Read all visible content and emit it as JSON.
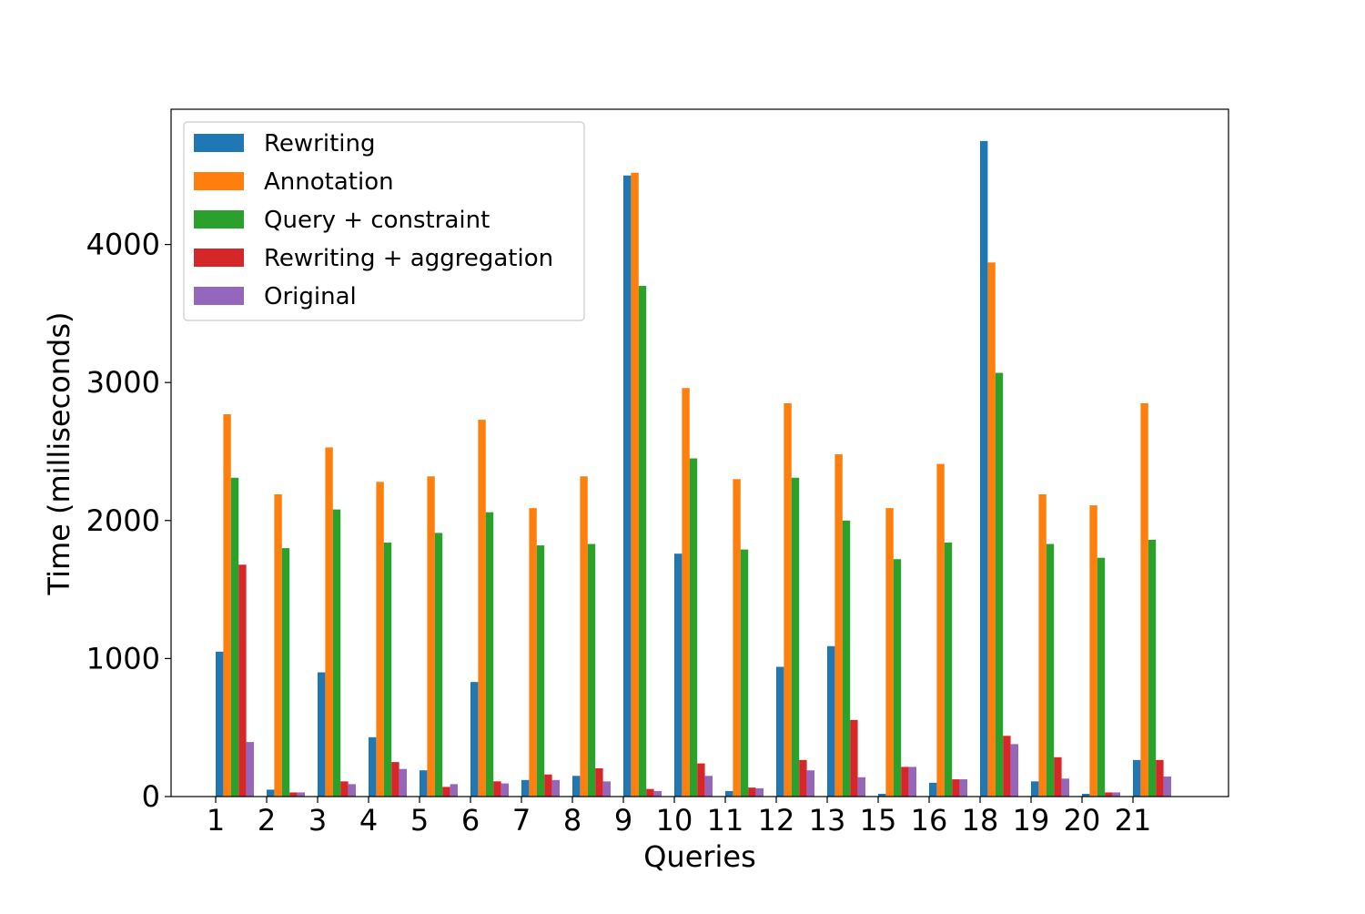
{
  "chart_data": {
    "type": "bar",
    "title": "",
    "xlabel": "Queries",
    "ylabel": "Time (milliseconds)",
    "ylim": [
      0,
      4980
    ],
    "yticks": [
      0,
      1000,
      2000,
      3000,
      4000
    ],
    "grid": false,
    "legend_position": "top-left",
    "categories": [
      "1",
      "2",
      "3",
      "4",
      "5",
      "6",
      "7",
      "8",
      "9",
      "10",
      "11",
      "12",
      "13",
      "15",
      "16",
      "18",
      "19",
      "20",
      "21"
    ],
    "series": [
      {
        "name": "Rewriting",
        "color": "#1f77b4",
        "values": [
          1050,
          50,
          900,
          430,
          190,
          830,
          120,
          150,
          4500,
          1760,
          40,
          940,
          1090,
          20,
          100,
          4750,
          110,
          20,
          265
        ]
      },
      {
        "name": "Annotation",
        "color": "#ff7f0e",
        "values": [
          2770,
          2190,
          2530,
          2280,
          2320,
          2730,
          2090,
          2320,
          4520,
          2960,
          2300,
          2850,
          2480,
          2090,
          2410,
          3870,
          2190,
          2110,
          2850
        ]
      },
      {
        "name": "Query + constraint",
        "color": "#2ca02c",
        "values": [
          2310,
          1800,
          2080,
          1840,
          1910,
          2060,
          1820,
          1830,
          3700,
          2450,
          1790,
          2310,
          2000,
          1720,
          1840,
          3070,
          1830,
          1730,
          1860
        ]
      },
      {
        "name": "Rewriting + aggregation",
        "color": "#d62728",
        "values": [
          1680,
          30,
          110,
          250,
          70,
          110,
          160,
          205,
          55,
          240,
          65,
          265,
          555,
          215,
          125,
          440,
          285,
          30,
          265
        ]
      },
      {
        "name": "Original",
        "color": "#9467bd",
        "values": [
          395,
          30,
          90,
          200,
          90,
          95,
          120,
          110,
          40,
          150,
          60,
          190,
          140,
          215,
          125,
          380,
          130,
          30,
          145
        ]
      }
    ]
  }
}
